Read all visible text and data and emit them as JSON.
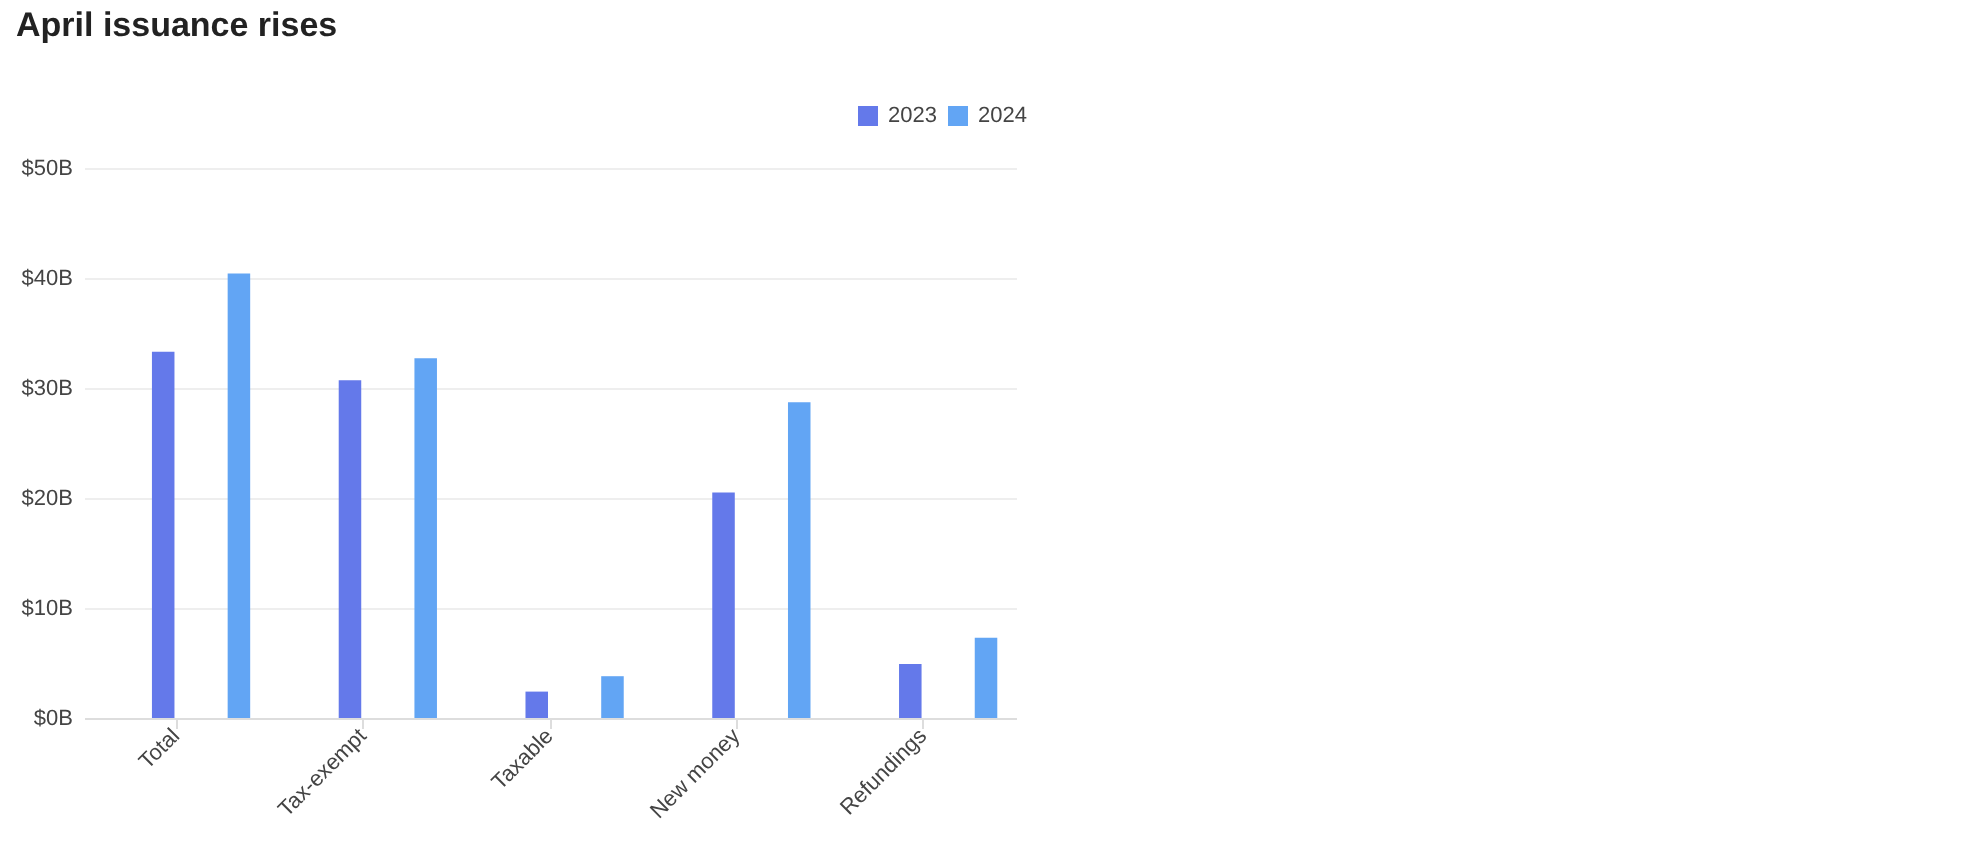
{
  "chart_data": {
    "type": "bar",
    "title": "April issuance rises",
    "categories": [
      "Total",
      "Tax-exempt",
      "Taxable",
      "New money",
      "Refundings"
    ],
    "series": [
      {
        "name": "2023",
        "color": "#6479ea",
        "values": [
          33.3,
          30.7,
          2.4,
          20.5,
          4.9
        ]
      },
      {
        "name": "2024",
        "color": "#62a5f4",
        "values": [
          40.4,
          32.7,
          3.8,
          28.7,
          7.3
        ]
      }
    ],
    "ylim": [
      0,
      50
    ],
    "yticks": [
      {
        "value": 0,
        "label": "$0B"
      },
      {
        "value": 10,
        "label": "$10B"
      },
      {
        "value": 20,
        "label": "$20B"
      },
      {
        "value": 30,
        "label": "$30B"
      },
      {
        "value": 40,
        "label": "$40B"
      },
      {
        "value": 50,
        "label": "$50B"
      }
    ],
    "grid": "y",
    "legend": "top right"
  }
}
